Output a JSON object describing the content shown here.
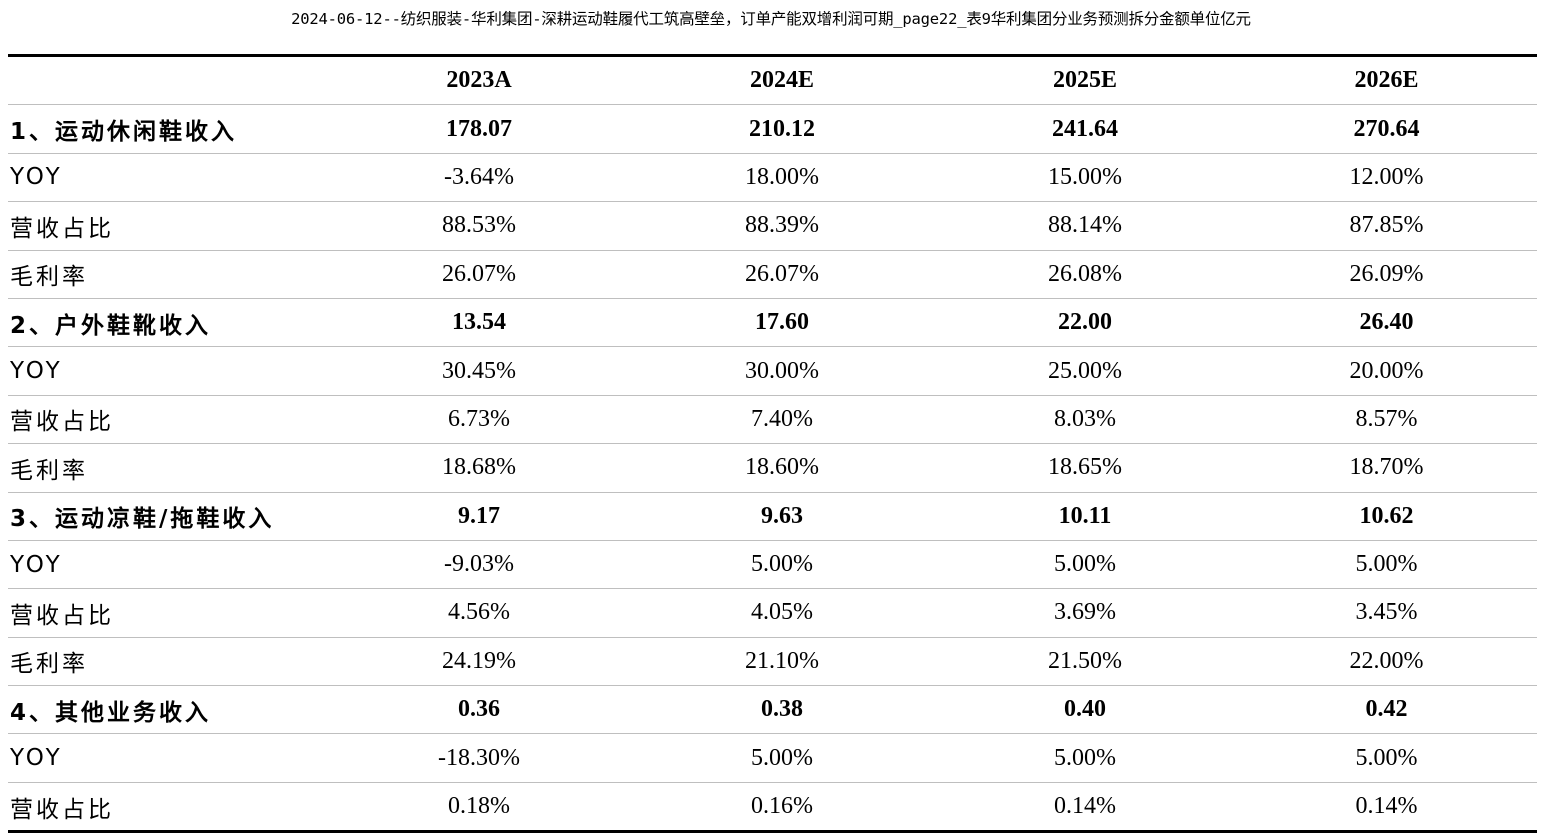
{
  "title": "2024-06-12--纺织服装-华利集团-深耕运动鞋履代工筑高壁垒，订单产能双增利润可期_page22_表9华利集团分业务预测拆分金额单位亿元",
  "table": {
    "headers": [
      "",
      "2023A",
      "2024E",
      "2025E",
      "2026E"
    ],
    "rows": [
      {
        "label": "1、运动休闲鞋收入",
        "values": [
          "178.07",
          "210.12",
          "241.64",
          "270.64"
        ]
      },
      {
        "label": "YOY",
        "values": [
          "-3.64%",
          "18.00%",
          "15.00%",
          "12.00%"
        ]
      },
      {
        "label": "营收占比",
        "values": [
          "88.53%",
          "88.39%",
          "88.14%",
          "87.85%"
        ]
      },
      {
        "label": "毛利率",
        "values": [
          "26.07%",
          "26.07%",
          "26.08%",
          "26.09%"
        ]
      },
      {
        "label": "2、户外鞋靴收入",
        "values": [
          "13.54",
          "17.60",
          "22.00",
          "26.40"
        ]
      },
      {
        "label": "YOY",
        "values": [
          "30.45%",
          "30.00%",
          "25.00%",
          "20.00%"
        ]
      },
      {
        "label": "营收占比",
        "values": [
          "6.73%",
          "7.40%",
          "8.03%",
          "8.57%"
        ]
      },
      {
        "label": "毛利率",
        "values": [
          "18.68%",
          "18.60%",
          "18.65%",
          "18.70%"
        ]
      },
      {
        "label": "3、运动凉鞋/拖鞋收入",
        "values": [
          "9.17",
          "9.63",
          "10.11",
          "10.62"
        ]
      },
      {
        "label": "YOY",
        "values": [
          "-9.03%",
          "5.00%",
          "5.00%",
          "5.00%"
        ]
      },
      {
        "label": "营收占比",
        "values": [
          "4.56%",
          "4.05%",
          "3.69%",
          "3.45%"
        ]
      },
      {
        "label": "毛利率",
        "values": [
          "24.19%",
          "21.10%",
          "21.50%",
          "22.00%"
        ]
      },
      {
        "label": "4、其他业务收入",
        "values": [
          "0.36",
          "0.38",
          "0.40",
          "0.42"
        ]
      },
      {
        "label": "YOY",
        "values": [
          "-18.30%",
          "5.00%",
          "5.00%",
          "5.00%"
        ]
      },
      {
        "label": "营收占比",
        "values": [
          "0.18%",
          "0.16%",
          "0.14%",
          "0.14%"
        ]
      }
    ]
  }
}
